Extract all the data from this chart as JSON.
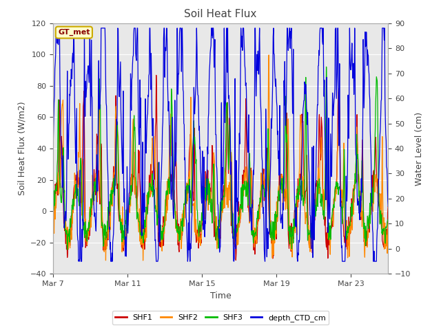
{
  "title": "Soil Heat Flux",
  "xlabel": "Time",
  "ylabel_left": "Soil Heat Flux (W/m2)",
  "ylabel_right": "Water Level (cm)",
  "ylim_left": [
    -40,
    120
  ],
  "ylim_right": [
    -10,
    90
  ],
  "yticks_left": [
    -40,
    -20,
    0,
    20,
    40,
    60,
    80,
    100,
    120
  ],
  "yticks_right": [
    -10,
    0,
    10,
    20,
    30,
    40,
    50,
    60,
    70,
    80,
    90
  ],
  "xtick_labels": [
    "Mar 7",
    "Mar 11",
    "Mar 15",
    "Mar 19",
    "Mar 23"
  ],
  "xtick_positions": [
    0,
    4,
    8,
    12,
    16
  ],
  "bg_color": "#ffffff",
  "plot_bg_color": "#e8e8e8",
  "gt_met_label": "GT_met",
  "gt_met_bg": "#ffffcc",
  "gt_met_border": "#ccaa00",
  "gt_met_text_color": "#880000",
  "shf1_color": "#cc0000",
  "shf2_color": "#ff8800",
  "shf3_color": "#00bb00",
  "ctd_color": "#0000dd",
  "num_days": 18,
  "seed": 42
}
